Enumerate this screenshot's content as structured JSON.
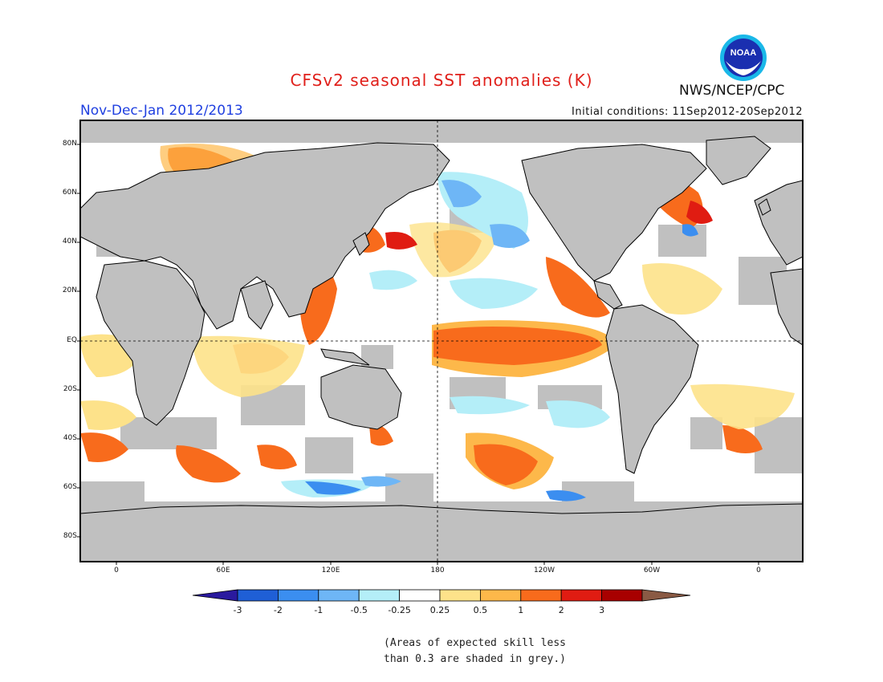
{
  "header": {
    "title": "CFSv2 seasonal SST anomalies (K)",
    "period": "Nov-Dec-Jan 2012/2013",
    "initial_conditions": "Initial conditions: 11Sep2012-20Sep2012",
    "agency": "NWS/NCEP/CPC",
    "logo_text": "NOAA"
  },
  "map": {
    "lat_labels": [
      "80N",
      "60N",
      "40N",
      "20N",
      "EQ",
      "20S",
      "40S",
      "60S",
      "80S"
    ],
    "lon_labels": [
      "0",
      "60E",
      "120E",
      "180",
      "120W",
      "60W",
      "0"
    ],
    "colors": {
      "land": "#c0c0c0",
      "ocean": "#ffffff",
      "skill_grey": "#c0c0c0",
      "coast": "#000000"
    }
  },
  "colorbar": {
    "labels": [
      "-3",
      "-2",
      "-1",
      "-0.5",
      "-0.25",
      "0.25",
      "0.5",
      "1",
      "2",
      "3"
    ],
    "colors": [
      "#2a1a9e",
      "#1f5fd6",
      "#3b8ef0",
      "#6eb6f6",
      "#b4eef8",
      "#ffffff",
      "#fde28a",
      "#fdb84a",
      "#f86b1c",
      "#e01c12",
      "#a80000",
      "#8a5a44"
    ]
  },
  "note": {
    "line1": "(Areas of expected skill less",
    "line2": "than 0.3 are shaded in grey.)"
  }
}
